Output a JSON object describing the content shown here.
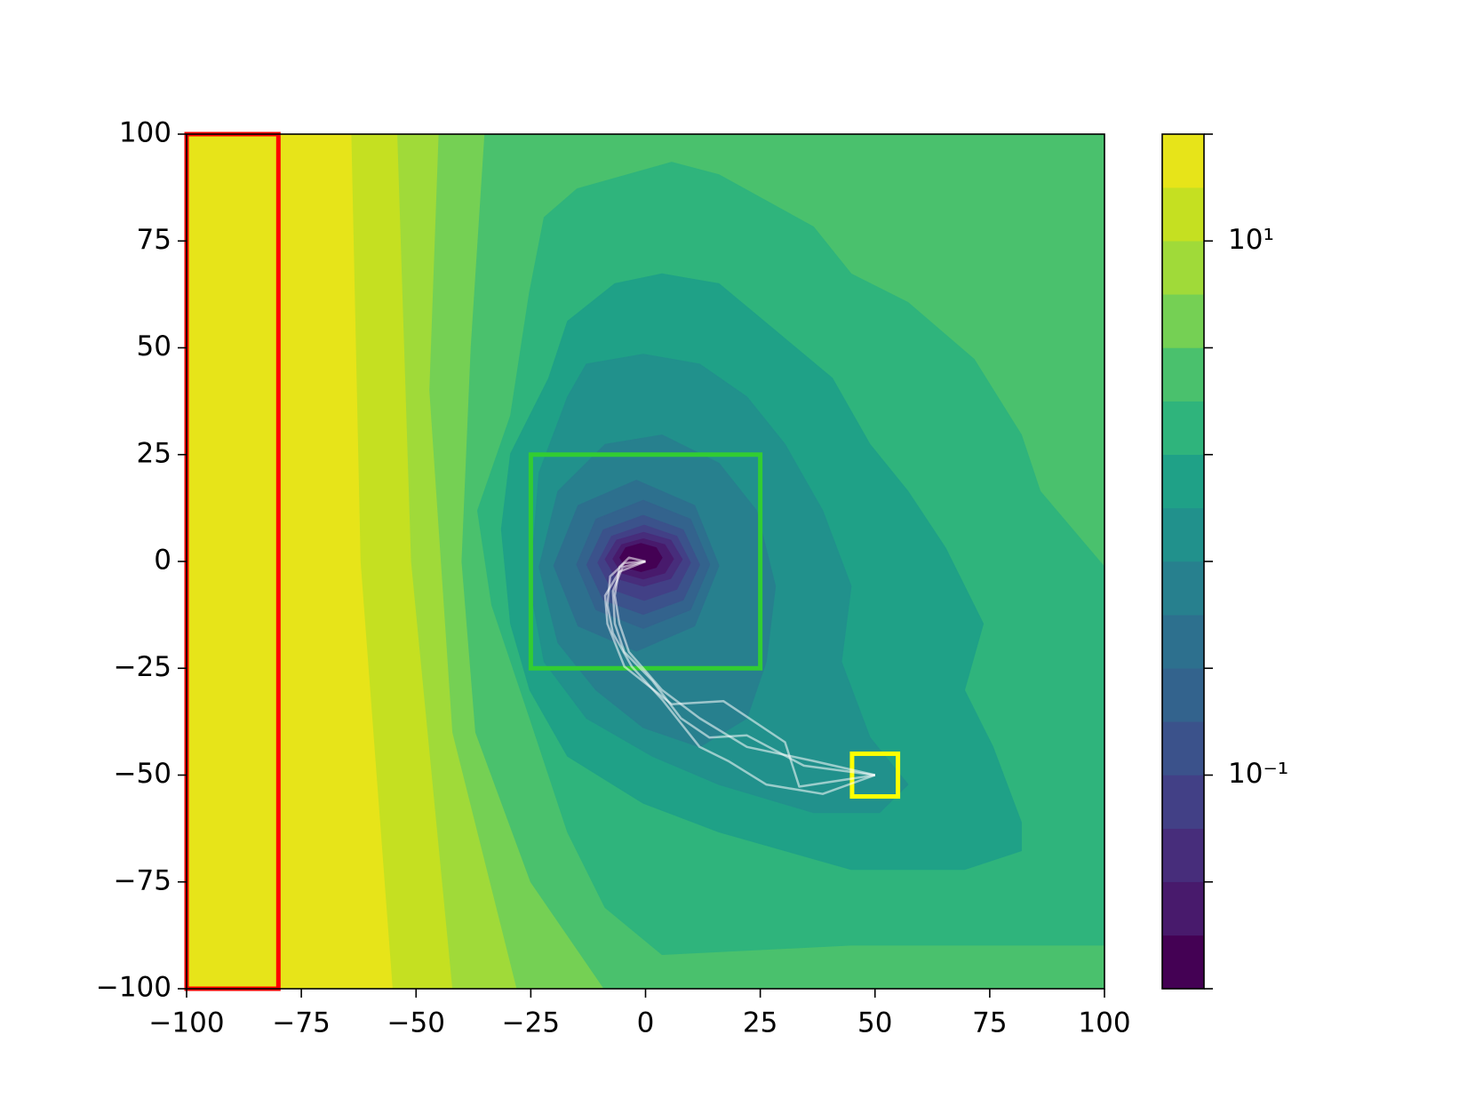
{
  "chart_data": {
    "type": "contour",
    "xlim": [
      -100,
      100
    ],
    "ylim": [
      -100,
      100
    ],
    "xticks": [
      {
        "value": -100,
        "label": "−100"
      },
      {
        "value": -75,
        "label": "−75"
      },
      {
        "value": -50,
        "label": "−50"
      },
      {
        "value": -25,
        "label": "−25"
      },
      0,
      25,
      50,
      75,
      100
    ],
    "yticks": [
      {
        "value": -100,
        "label": "−100"
      },
      {
        "value": -75,
        "label": "−75"
      },
      {
        "value": -50,
        "label": "−50"
      },
      {
        "value": -25,
        "label": "−25"
      },
      0,
      25,
      50,
      75,
      100
    ],
    "colorbar_scale": "log",
    "clim": [
      0.01585,
      25.12
    ],
    "levels": [
      0.01585,
      0.02512,
      0.03981,
      0.0631,
      0.1,
      0.1585,
      0.2512,
      0.3981,
      0.631,
      1,
      1.585,
      2.512,
      3.981,
      6.31,
      10,
      15.85,
      25.12
    ],
    "colors": [
      "#440154",
      "#481a6c",
      "#472d7b",
      "#424086",
      "#3b528b",
      "#33638d",
      "#2d708e",
      "#27808e",
      "#21918c",
      "#1fa187",
      "#2fb47c",
      "#4ac16d",
      "#75d054",
      "#a0da39",
      "#c5e021",
      "#e7e419"
    ],
    "cticks": [
      {
        "value": 0.1,
        "label": "10⁻¹"
      },
      {
        "value": 10,
        "label": "10¹"
      }
    ],
    "cminor_ticks": [
      0.01585,
      0.03981,
      0.2512,
      0.631,
      1.585,
      3.981,
      25.12
    ],
    "regions": [
      {
        "band": 15,
        "x": [
          -100,
          100,
          100,
          -100
        ],
        "y": [
          100,
          100,
          -100,
          -100
        ]
      },
      {
        "band": 14,
        "x": [
          -64,
          100,
          100,
          -55,
          -62
        ],
        "y": [
          100,
          100,
          -100,
          -100,
          0
        ]
      },
      {
        "band": 13,
        "x": [
          -54,
          100,
          100,
          -42,
          -51
        ],
        "y": [
          100,
          100,
          -100,
          -100,
          0
        ]
      },
      {
        "band": 12,
        "x": [
          -45,
          100,
          100,
          -28,
          -42,
          -47
        ],
        "y": [
          100,
          100,
          -100,
          -100,
          -40,
          40
        ]
      },
      {
        "band": 11,
        "x": [
          -35,
          100,
          100,
          -9,
          -25,
          -37,
          -40,
          -38
        ],
        "y": [
          100,
          100,
          -100,
          -100,
          -75,
          -40,
          0,
          50
        ]
      },
      {
        "band": 10,
        "x": [
          -29.4,
          -25.3,
          -22.1,
          -14.9,
          5.7,
          16.0,
          36.6,
          44.8,
          57.2,
          71.6,
          81.9,
          86.0,
          100,
          100,
          44.8,
          3.6,
          -8.8,
          -17.0,
          -25.2,
          -33.5,
          -36.6
        ],
        "y": [
          34.1,
          62.8,
          80.5,
          87.2,
          93.4,
          90.5,
          78.3,
          67.3,
          60.6,
          47.3,
          29.6,
          16.4,
          -1.3,
          -89.8,
          -89.8,
          -92.0,
          -81.0,
          -63.3,
          -36.7,
          -10.2,
          11.9
        ]
      },
      {
        "band": 9,
        "x": [
          -21.1,
          -17.0,
          -6.7,
          3.6,
          16.0,
          28.3,
          40.7,
          48.9,
          57.2,
          65.4,
          73.6,
          69.5,
          75.7,
          81.9,
          81.9,
          69.5,
          44.8,
          16.0,
          -0.5,
          -17.0,
          -25.2,
          -29.4,
          -31.4,
          -29.4
        ],
        "y": [
          42.9,
          56.2,
          65.0,
          67.3,
          65.0,
          54.0,
          42.9,
          27.4,
          16.4,
          3.1,
          -14.6,
          -30.1,
          -43.4,
          -61.1,
          -67.7,
          -72.1,
          -72.1,
          -63.3,
          -56.6,
          -45.6,
          -30.1,
          -14.6,
          7.5,
          25.2
        ]
      },
      {
        "band": 8,
        "x": [
          -17.0,
          -12.9,
          -0.5,
          11.8,
          22.1,
          30.4,
          38.6,
          44.8,
          42.7,
          48.9,
          57.2,
          51.0,
          36.6,
          16.0,
          1.5,
          -12.9,
          -22.1,
          -25.2,
          -23.2
        ],
        "y": [
          38.5,
          46.2,
          48.5,
          46.2,
          38.5,
          27.4,
          11.9,
          -5.8,
          -23.5,
          -41.2,
          -52.2,
          -58.8,
          -58.8,
          -52.2,
          -45.6,
          -36.7,
          -23.5,
          -5.8,
          20.8
        ]
      },
      {
        "band": 7,
        "x": [
          -8.8,
          3.6,
          16.0,
          24.2,
          28.3,
          26.3,
          22.1,
          11.8,
          -0.5,
          -10.8,
          -19.1,
          -23.2,
          -19.1
        ],
        "y": [
          27.4,
          29.6,
          23.0,
          11.9,
          -5.8,
          -23.5,
          -36.7,
          -43.4,
          -38.9,
          -30.1,
          -19.0,
          -1.3,
          16.4
        ]
      },
      {
        "band": 6,
        "x": [
          16,
          10.7,
          -2,
          -14.7,
          -20,
          -14.7,
          -2,
          10.7
        ],
        "y": [
          -1,
          13.1,
          19,
          13.1,
          -1,
          -15.1,
          -21,
          -15.1
        ]
      },
      {
        "band": 5,
        "x": [
          14,
          9.8,
          -0.5,
          -10.8,
          -15,
          -10.8,
          -0.5,
          9.8
        ],
        "y": [
          -0.7,
          9.9,
          14.3,
          9.9,
          -0.7,
          -11.3,
          -15.7,
          -11.3
        ]
      },
      {
        "band": 4,
        "x": [
          11.8,
          8.2,
          -0.5,
          -9.2,
          -12.8,
          -9.2,
          -0.5,
          8.2
        ],
        "y": [
          -0.8,
          7.4,
          10.8,
          7.4,
          -0.8,
          -9,
          -12.4,
          -9
        ]
      },
      {
        "band": 3,
        "x": [
          9.8,
          6.8,
          -0.3,
          -7.4,
          -10.4,
          -7.4,
          -0.3,
          6.8
        ],
        "y": [
          -0.3,
          5.9,
          8.5,
          5.9,
          -0.3,
          -6.5,
          -9.1,
          -6.5
        ]
      },
      {
        "band": 2,
        "x": [
          8,
          5.5,
          -0.4,
          -6.3,
          -8.8,
          -6.3,
          -0.4,
          5.5
        ],
        "y": [
          0.5,
          5,
          6.8,
          5,
          0.5,
          -4,
          -5.8,
          -4
        ]
      },
      {
        "band": 1,
        "x": [
          6.1,
          4.2,
          -0.5,
          -5.2,
          -7.1,
          -5.2,
          -0.5,
          4.2
        ],
        "y": [
          0.6,
          3.9,
          5.3,
          3.9,
          0.6,
          -2.7,
          -4.1,
          -2.7
        ]
      },
      {
        "band": 0,
        "x": [
          3.6,
          2.3,
          -1,
          -4.3,
          -5.6,
          -4.3,
          -1,
          2.3
        ],
        "y": [
          0.9,
          3.2,
          4.2,
          3.2,
          0.9,
          -1.4,
          -2.4,
          -1.4
        ]
      }
    ],
    "rectangles": [
      {
        "x": [
          -100,
          -80
        ],
        "y": [
          -100,
          100
        ],
        "color": "#ff0000"
      },
      {
        "x": [
          -25,
          25
        ],
        "y": [
          -25,
          25
        ],
        "color": "#32cd32"
      },
      {
        "x": [
          45,
          55
        ],
        "y": [
          -55,
          -45
        ],
        "color": "#ffff00"
      }
    ],
    "trajectory_color": "#ffffff",
    "trajectories": [
      {
        "x": [
          0,
          -3.6,
          -5.7,
          -6.7,
          -5.7,
          -3.6,
          3.6,
          11.8,
          22.1,
          36.6,
          50
        ],
        "y": [
          0,
          0.9,
          -1.3,
          -8.0,
          -14.6,
          -21.2,
          -30.1,
          -36.7,
          -43.4,
          -46.7,
          -50
        ]
      },
      {
        "x": [
          0,
          -4.6,
          -7.7,
          -8.3,
          -7.1,
          -3.0,
          3.6,
          11.8,
          18.0,
          26.3,
          38.6,
          50
        ],
        "y": [
          0,
          -0.4,
          -3.5,
          -10.2,
          -16.8,
          -24.6,
          -32.3,
          -43.4,
          -46.7,
          -52.2,
          -54.4,
          -50
        ]
      },
      {
        "x": [
          0,
          -5.0,
          -7.1,
          -6.7,
          -4.6,
          1.5,
          7.7,
          13.9,
          22.1,
          34.5,
          50
        ],
        "y": [
          0,
          -1.3,
          -6.9,
          -14.6,
          -21.2,
          -27.9,
          -36.7,
          -41.2,
          -40.7,
          -47.8,
          -50
        ]
      },
      {
        "x": [
          0,
          -5.7,
          -8.8,
          -8.3,
          -4.6,
          5.7,
          17.0,
          30.4,
          33.5,
          50
        ],
        "y": [
          0,
          -2.4,
          -8.0,
          -14.6,
          -24.6,
          -33.4,
          -32.7,
          -42.3,
          -52.7,
          -50
        ]
      }
    ]
  }
}
